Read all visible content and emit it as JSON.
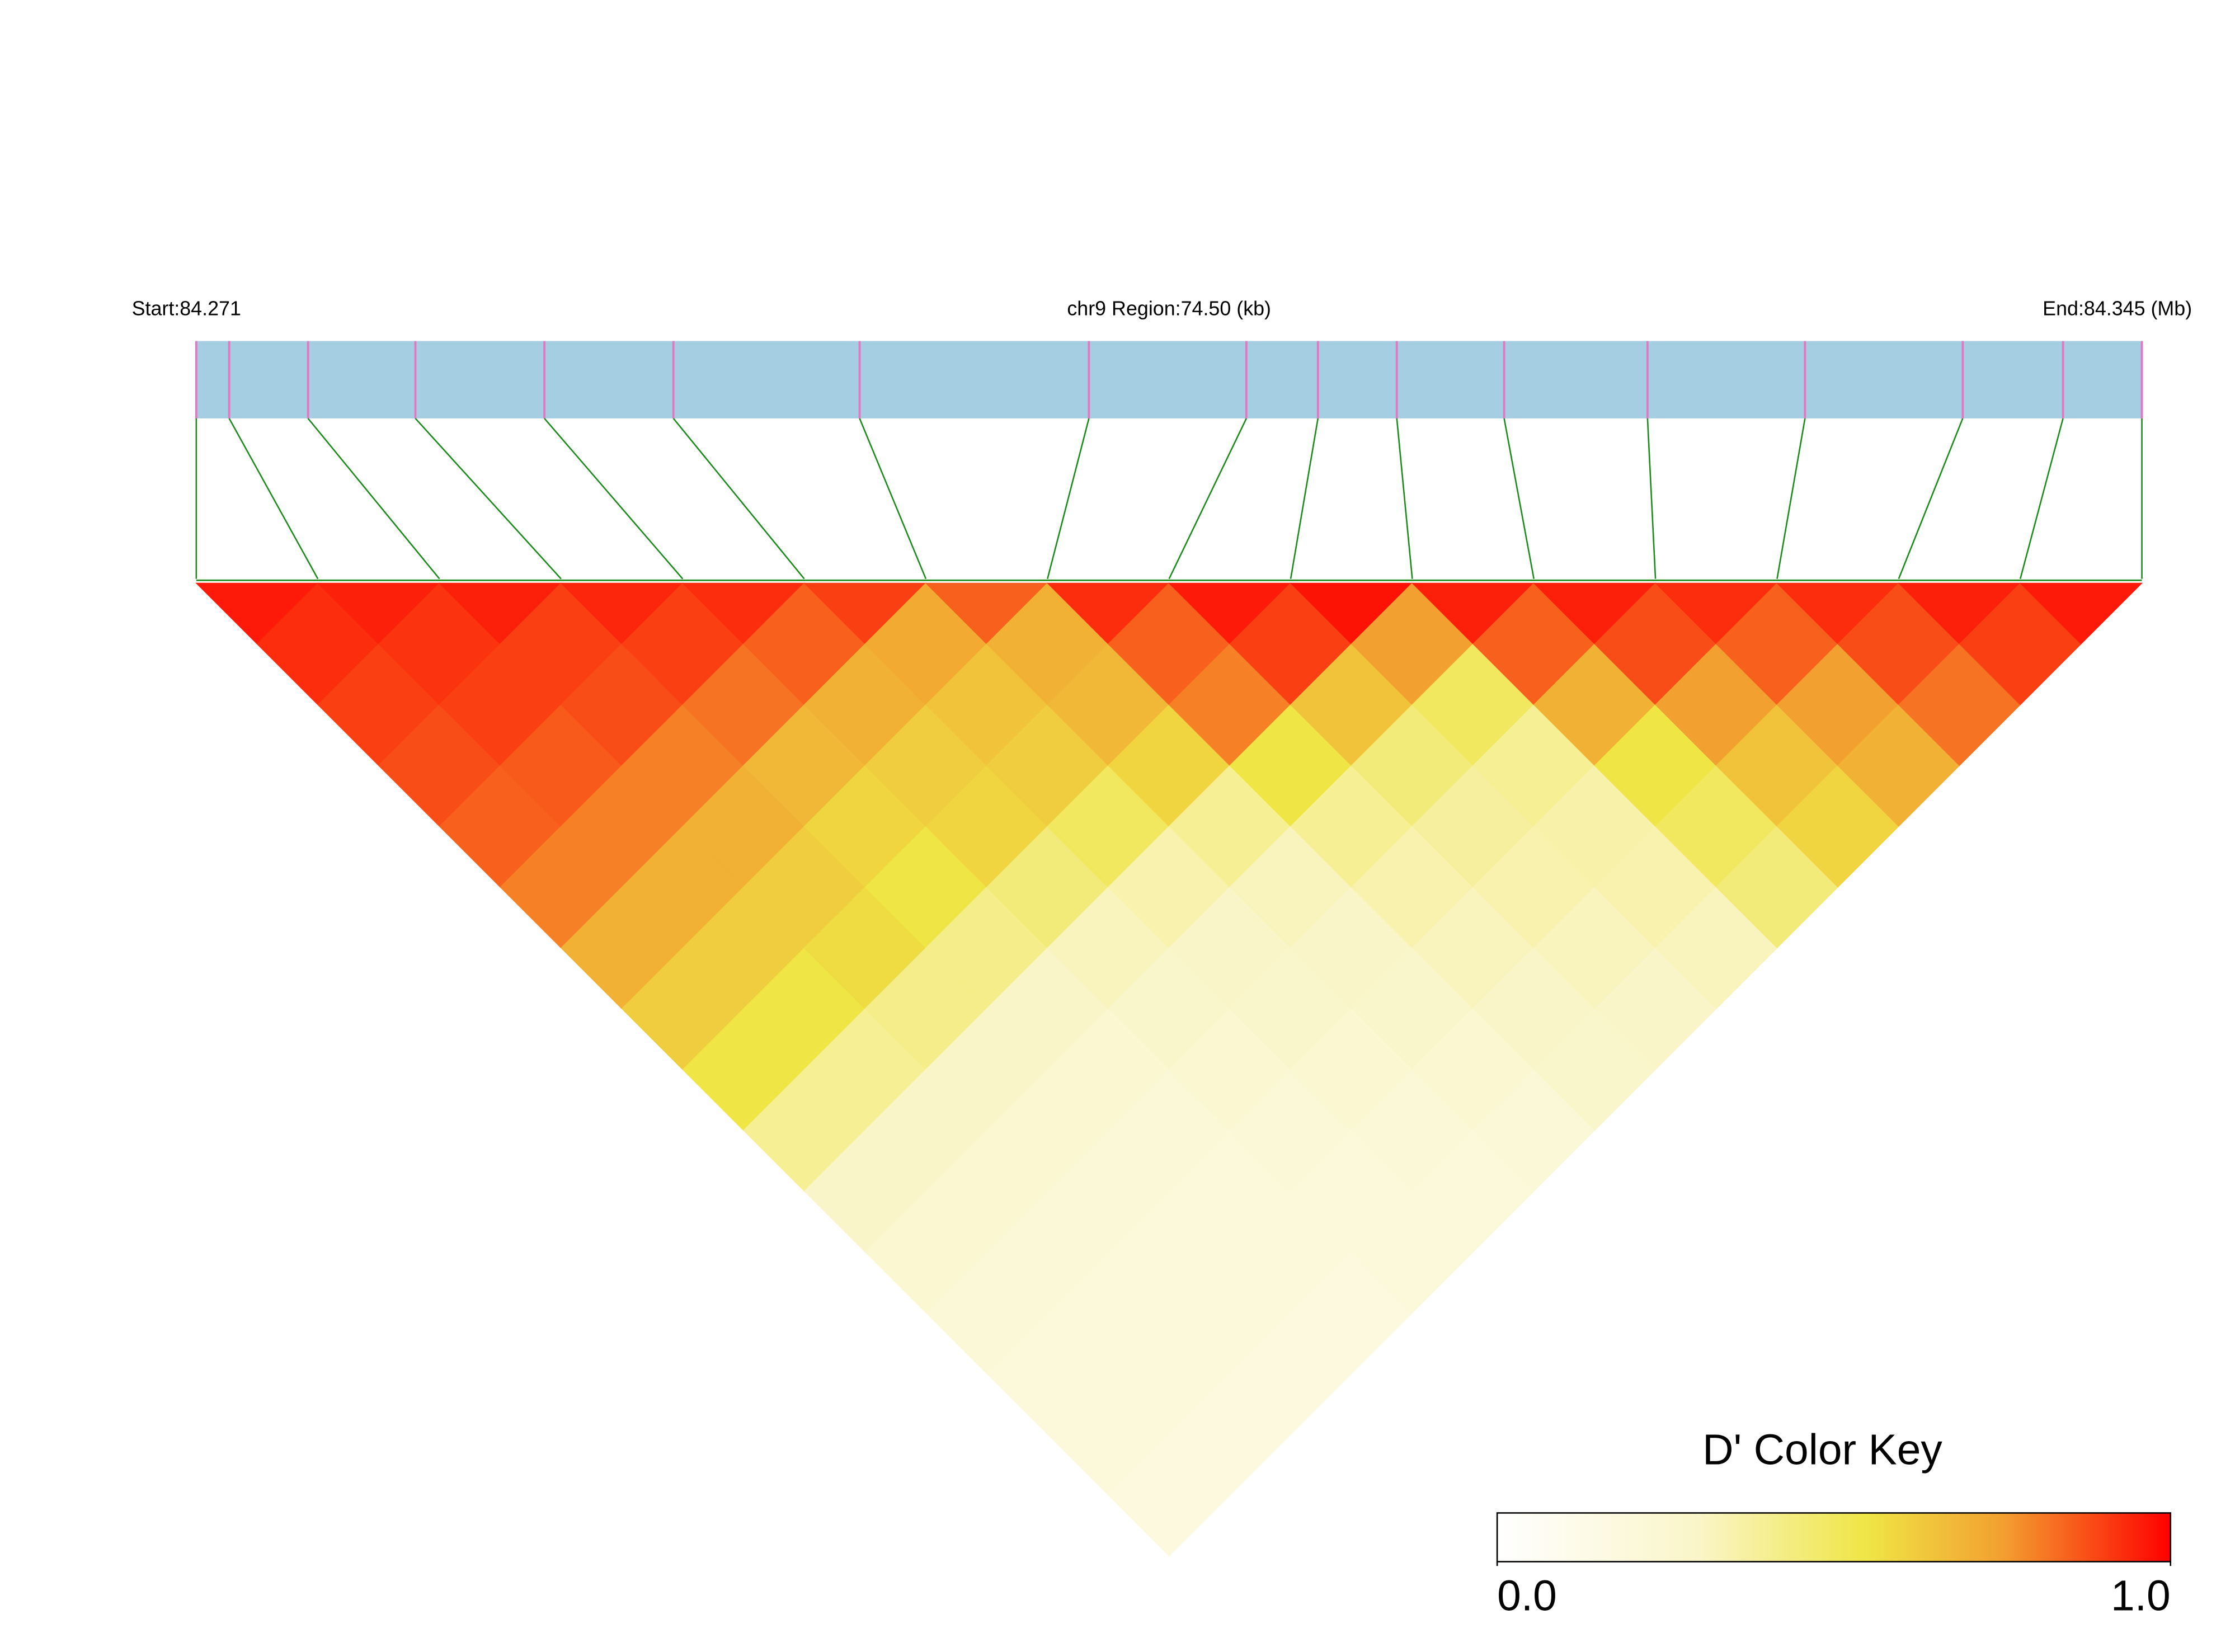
{
  "chart_data": {
    "type": "ld-heatmap",
    "start_label": "Start:84.271",
    "title": "chr9 Region:74.50 (kb)",
    "end_label": "End:84.345 (Mb)",
    "legend_title": "D' Color Key",
    "xlim": [
      0,
      74.5
    ],
    "snp_positions": [
      0,
      1.26,
      4.28,
      8.39,
      13.33,
      18.27,
      25.4,
      34.18,
      40.21,
      42.95,
      45.97,
      50.08,
      55.57,
      61.6,
      67.64,
      71.48,
      74.5
    ],
    "matrix": [
      [
        0.96,
        0.93,
        0.9,
        0.88,
        0.85,
        0.8,
        0.7,
        0.62,
        0.55,
        0.4,
        0.3,
        0.25,
        0.22,
        0.2,
        0.2,
        0.18
      ],
      [
        0.95,
        0.92,
        0.9,
        0.86,
        0.8,
        0.7,
        0.62,
        0.55,
        0.4,
        0.3,
        0.25,
        0.22,
        0.2,
        0.2,
        0.18
      ],
      [
        0.95,
        0.9,
        0.88,
        0.8,
        0.7,
        0.62,
        0.58,
        0.42,
        0.3,
        0.25,
        0.22,
        0.2,
        0.2,
        0.18
      ],
      [
        0.94,
        0.9,
        0.82,
        0.68,
        0.6,
        0.55,
        0.42,
        0.3,
        0.25,
        0.22,
        0.2,
        0.2,
        0.18
      ],
      [
        0.93,
        0.85,
        0.7,
        0.62,
        0.6,
        0.45,
        0.32,
        0.28,
        0.25,
        0.22,
        0.2,
        0.2
      ],
      [
        0.9,
        0.72,
        0.65,
        0.62,
        0.5,
        0.35,
        0.3,
        0.28,
        0.25,
        0.22,
        0.2
      ],
      [
        0.85,
        0.7,
        0.68,
        0.6,
        0.4,
        0.32,
        0.3,
        0.28,
        0.25,
        0.22
      ],
      [
        0.93,
        0.85,
        0.8,
        0.55,
        0.4,
        0.35,
        0.32,
        0.3,
        0.28
      ],
      [
        0.96,
        0.9,
        0.65,
        0.45,
        0.38,
        0.35,
        0.32,
        0.3
      ],
      [
        0.97,
        0.75,
        0.5,
        0.4,
        0.36,
        0.35,
        0.32
      ],
      [
        0.95,
        0.85,
        0.7,
        0.55,
        0.5,
        0.45
      ],
      [
        0.95,
        0.88,
        0.75,
        0.65,
        0.6
      ],
      [
        0.93,
        0.85,
        0.75,
        0.7
      ],
      [
        0.93,
        0.88,
        0.82
      ],
      [
        0.95,
        0.9
      ],
      [
        0.96
      ]
    ],
    "color_scale": {
      "domain": [
        0,
        0.3,
        0.55,
        0.75,
        1
      ],
      "colors": [
        "#ffffff",
        "#faf5c8",
        "#efe545",
        "#f2a030",
        "#ff0000"
      ]
    },
    "bar_color": "#a6cee3",
    "snp_mark_color": "#e377c2",
    "link_color": "#1a8a1a",
    "clim": [
      0,
      1
    ],
    "cticks": [
      {
        "value": 0,
        "label": "0.0"
      },
      {
        "value": 1,
        "label": "1.0"
      }
    ]
  }
}
